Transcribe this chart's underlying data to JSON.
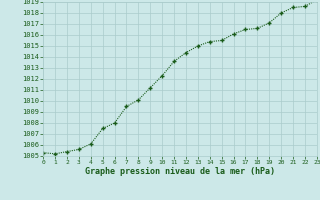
{
  "x": [
    0,
    1,
    2,
    3,
    4,
    5,
    6,
    7,
    8,
    9,
    10,
    11,
    12,
    13,
    14,
    15,
    16,
    17,
    18,
    19,
    20,
    21,
    22,
    23
  ],
  "y": [
    1005.3,
    1005.2,
    1005.4,
    1005.6,
    1006.1,
    1007.5,
    1008.0,
    1009.5,
    1010.1,
    1011.2,
    1012.3,
    1013.6,
    1014.4,
    1015.0,
    1015.4,
    1015.5,
    1016.1,
    1016.5,
    1016.6,
    1017.1,
    1018.0,
    1018.5,
    1018.6,
    1019.2
  ],
  "line_color": "#1a5c1a",
  "marker": "+",
  "bg_color": "#cce8e8",
  "grid_color": "#aacccc",
  "xlabel": "Graphe pression niveau de la mer (hPa)",
  "xlabel_color": "#1a5c1a",
  "tick_color": "#1a5c1a",
  "ylim_min": 1005,
  "ylim_max": 1019,
  "xlim_min": 0,
  "xlim_max": 23
}
